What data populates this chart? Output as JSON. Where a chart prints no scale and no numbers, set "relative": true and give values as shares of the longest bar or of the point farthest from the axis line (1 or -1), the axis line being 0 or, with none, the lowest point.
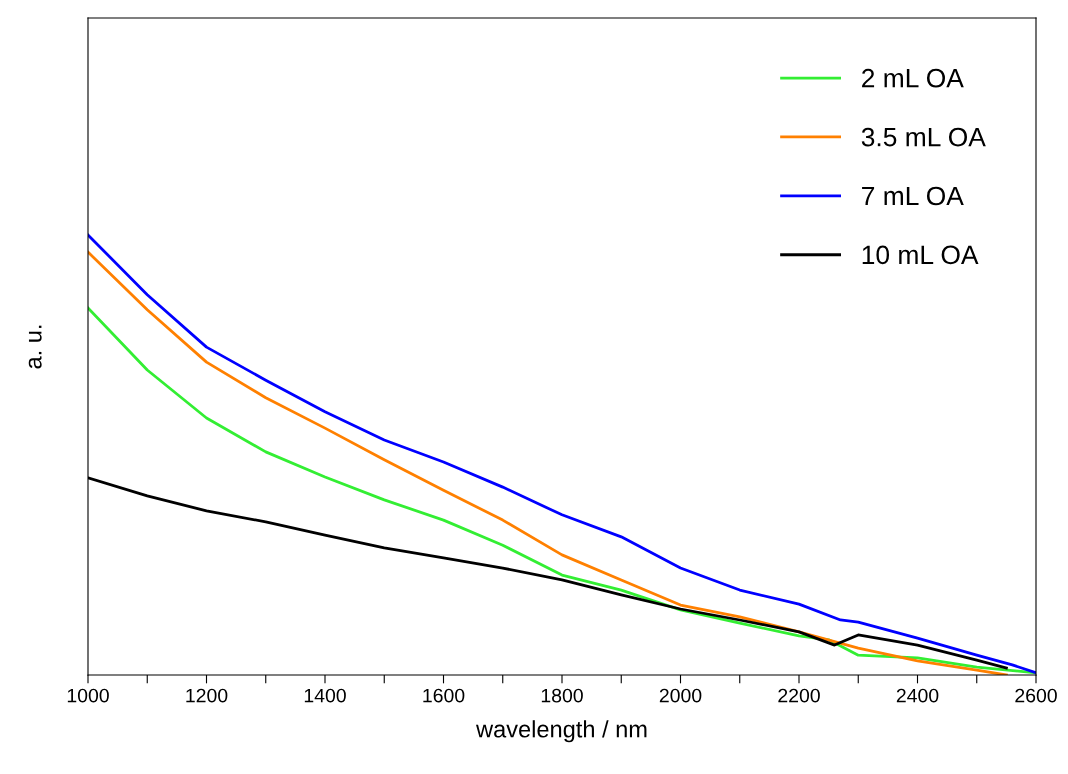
{
  "chart_data": {
    "type": "line",
    "relative": true,
    "xlabel": "wavelength / nm",
    "ylabel": "a. u.",
    "xlim": [
      1000,
      2600
    ],
    "xticks": [
      1000,
      {
        "value": 1100,
        "label": null
      },
      1200,
      {
        "value": 1300,
        "label": null
      },
      1400,
      {
        "value": 1500,
        "label": null
      },
      1600,
      {
        "value": 1700,
        "label": null
      },
      1800,
      {
        "value": 1900,
        "label": null
      },
      2000,
      {
        "value": 2100,
        "label": null
      },
      2200,
      {
        "value": 2300,
        "label": null
      },
      2400,
      {
        "value": 2500,
        "label": null
      },
      2600
    ],
    "tick_labels": "x",
    "legend": "top right",
    "grid": false,
    "marker": "none",
    "line_style": "solid",
    "series": [
      {
        "name": "2 mL OA",
        "color": "#33ee33",
        "x": [
          1000,
          1100,
          1200,
          1300,
          1400,
          1500,
          1600,
          1700,
          1800,
          1900,
          2000,
          2100,
          2200,
          2250,
          2300,
          2400,
          2500,
          2600
        ],
        "values": [
          0.834,
          0.693,
          0.584,
          0.507,
          0.45,
          0.398,
          0.352,
          0.295,
          0.227,
          0.193,
          0.148,
          0.118,
          0.089,
          0.08,
          0.045,
          0.039,
          0.018,
          0.005
        ]
      },
      {
        "name": "3.5 mL OA",
        "color": "#ff8000",
        "x": [
          1000,
          1100,
          1200,
          1300,
          1400,
          1500,
          1600,
          1700,
          1800,
          1900,
          2000,
          2100,
          2200,
          2300,
          2400,
          2500,
          2550
        ],
        "values": [
          0.961,
          0.83,
          0.711,
          0.63,
          0.561,
          0.489,
          0.42,
          0.352,
          0.273,
          0.216,
          0.159,
          0.132,
          0.098,
          0.061,
          0.032,
          0.011,
          0
        ]
      },
      {
        "name": "7 mL OA",
        "color": "#0000ff",
        "x": [
          1000,
          1100,
          1200,
          1300,
          1400,
          1500,
          1600,
          1700,
          1800,
          1900,
          2000,
          2100,
          2200,
          2270,
          2300,
          2400,
          2500,
          2560,
          2600
        ],
        "values": [
          1.0,
          0.864,
          0.745,
          0.67,
          0.598,
          0.534,
          0.484,
          0.427,
          0.364,
          0.314,
          0.243,
          0.193,
          0.161,
          0.125,
          0.12,
          0.084,
          0.045,
          0.023,
          0.005
        ]
      },
      {
        "name": "10 mL OA",
        "color": "#000000",
        "x": [
          1000,
          1100,
          1200,
          1300,
          1400,
          1500,
          1600,
          1700,
          1800,
          1900,
          2000,
          2100,
          2200,
          2260,
          2300,
          2400,
          2500,
          2550
        ],
        "values": [
          0.448,
          0.407,
          0.373,
          0.348,
          0.318,
          0.289,
          0.266,
          0.243,
          0.216,
          0.182,
          0.15,
          0.125,
          0.098,
          0.068,
          0.091,
          0.068,
          0.034,
          0.016
        ]
      }
    ]
  }
}
